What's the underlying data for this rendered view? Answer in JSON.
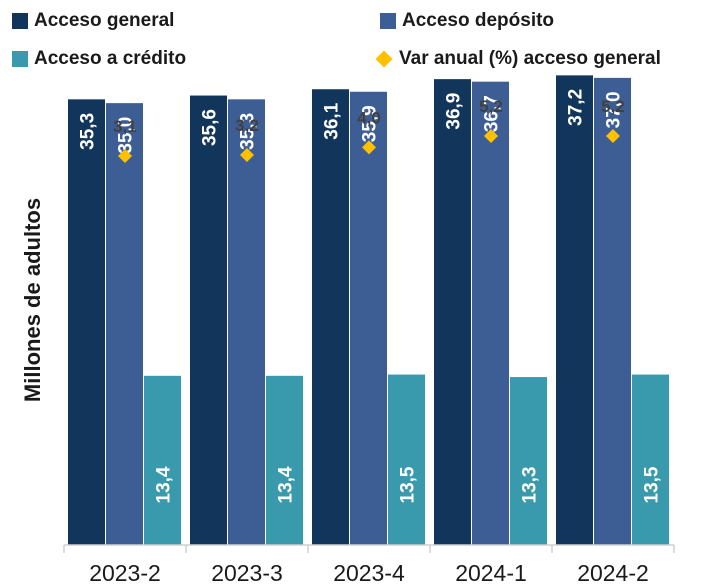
{
  "chart_data": {
    "type": "bar",
    "categories": [
      "2023-2",
      "2023-3",
      "2023-4",
      "2024-1",
      "2024-2"
    ],
    "series": [
      {
        "name": "Acceso general",
        "values": [
          35.3,
          35.6,
          36.1,
          36.9,
          37.2
        ],
        "labels": [
          "35,3",
          "35,6",
          "36,1",
          "36,9",
          "37,2"
        ],
        "color": "#12355b"
      },
      {
        "name": "Acceso depósito",
        "values": [
          35.0,
          35.3,
          35.9,
          36.7,
          37.0
        ],
        "labels": [
          "35,0",
          "35,3",
          "35,9",
          "36,7",
          "37,0"
        ],
        "color": "#3d5e95"
      },
      {
        "name": "Acceso a crédito",
        "values": [
          13.4,
          13.4,
          13.5,
          13.3,
          13.5
        ],
        "labels": [
          "13,4",
          "13,4",
          "13,5",
          "13,3",
          "13,5"
        ],
        "color": "#3a9aad"
      }
    ],
    "line_series": {
      "name": "Var anual (%) acceso general",
      "values": [
        3.1,
        3.2,
        4.0,
        5.2,
        5.2
      ],
      "labels": [
        "3,1",
        "3,2",
        "4,0",
        "5,2",
        "5,2"
      ],
      "color": "#ffc000",
      "marker": "diamond"
    },
    "ylabel": "Millones de adultos",
    "xlabel": "",
    "ylim": [
      0,
      40
    ],
    "legend_position": "top",
    "grid": false
  }
}
